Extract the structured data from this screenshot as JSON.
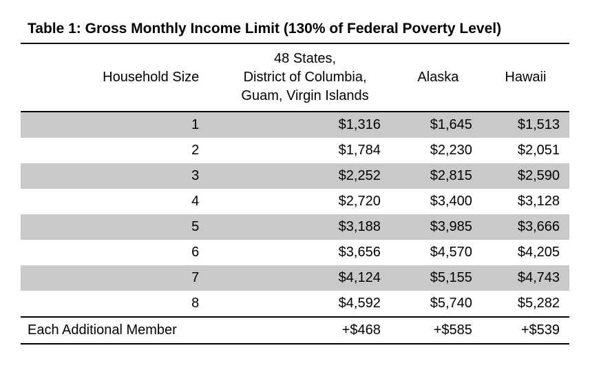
{
  "title": "Table 1: Gross Monthly Income Limit (130% of Federal Poverty Level)",
  "columns": {
    "household": "Household Size",
    "states": "48 States,\nDistrict of Columbia,\nGuam, Virgin Islands",
    "alaska": "Alaska",
    "hawaii": "Hawaii"
  },
  "rows": [
    {
      "household": "1",
      "states": "$1,316",
      "alaska": "$1,645",
      "hawaii": "$1,513"
    },
    {
      "household": "2",
      "states": "$1,784",
      "alaska": "$2,230",
      "hawaii": "$2,051"
    },
    {
      "household": "3",
      "states": "$2,252",
      "alaska": "$2,815",
      "hawaii": "$2,590"
    },
    {
      "household": "4",
      "states": "$2,720",
      "alaska": "$3,400",
      "hawaii": "$3,128"
    },
    {
      "household": "5",
      "states": "$3,188",
      "alaska": "$3,985",
      "hawaii": "$3,666"
    },
    {
      "household": "6",
      "states": "$3,656",
      "alaska": "$4,570",
      "hawaii": "$4,205"
    },
    {
      "household": "7",
      "states": "$4,124",
      "alaska": "$5,155",
      "hawaii": "$4,743"
    },
    {
      "household": "8",
      "states": "$4,592",
      "alaska": "$5,740",
      "hawaii": "$5,282"
    }
  ],
  "footer": {
    "label": "Each Additional Member",
    "states": "+$468",
    "alaska": "+$585",
    "hawaii": "+$539"
  },
  "style": {
    "stripe_color": "#c9c9c9",
    "border_color": "#000000",
    "background_color": "#ffffff",
    "text_color": "#000000",
    "title_fontsize": 21,
    "body_fontsize": 20,
    "font_family": "Arial"
  }
}
